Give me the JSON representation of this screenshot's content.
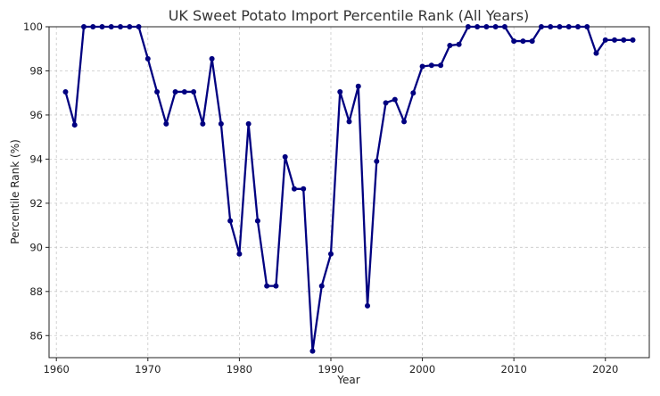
{
  "chart_data": {
    "type": "line",
    "title": "UK Sweet Potato Import Percentile Rank (All Years)",
    "xlabel": "Year",
    "ylabel": "Percentile Rank (%)",
    "xlim": [
      1959.2,
      2024.8
    ],
    "ylim": [
      85,
      100
    ],
    "xticks": [
      1960,
      1970,
      1980,
      1990,
      2000,
      2010,
      2020
    ],
    "yticks": [
      86,
      88,
      90,
      92,
      94,
      96,
      98,
      100
    ],
    "grid": true,
    "line_color": "#000080",
    "x": [
      1961,
      1962,
      1963,
      1964,
      1965,
      1966,
      1967,
      1968,
      1969,
      1970,
      1971,
      1972,
      1973,
      1974,
      1975,
      1976,
      1977,
      1978,
      1979,
      1980,
      1981,
      1982,
      1983,
      1984,
      1985,
      1986,
      1987,
      1988,
      1989,
      1990,
      1991,
      1992,
      1993,
      1994,
      1995,
      1996,
      1997,
      1998,
      1999,
      2000,
      2001,
      2002,
      2003,
      2004,
      2005,
      2006,
      2007,
      2008,
      2009,
      2010,
      2011,
      2012,
      2013,
      2014,
      2015,
      2016,
      2017,
      2018,
      2019,
      2020,
      2021,
      2022,
      2023
    ],
    "y": [
      97.05,
      95.55,
      100,
      100,
      100,
      100,
      100,
      100,
      100,
      98.55,
      97.05,
      95.6,
      97.05,
      97.05,
      97.05,
      95.6,
      98.55,
      95.6,
      91.2,
      89.7,
      95.6,
      91.2,
      88.25,
      88.25,
      94.1,
      92.65,
      92.65,
      85.3,
      88.25,
      89.7,
      97.05,
      95.7,
      97.3,
      87.35,
      93.9,
      96.55,
      96.7,
      95.7,
      97.0,
      98.2,
      98.25,
      98.25,
      99.15,
      99.2,
      100,
      100,
      100,
      100,
      100,
      99.35,
      99.35,
      99.35,
      100,
      100,
      100,
      100,
      100,
      100,
      98.8,
      99.4,
      99.4,
      99.4,
      99.4
    ]
  }
}
